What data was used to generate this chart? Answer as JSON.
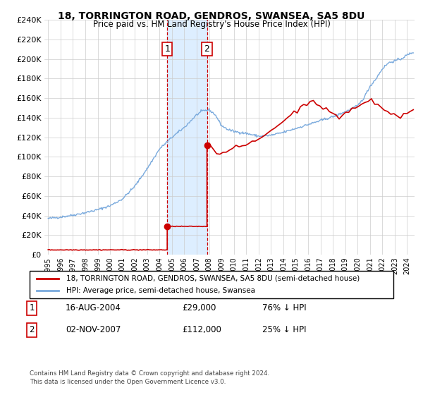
{
  "title": "18, TORRINGTON ROAD, GENDROS, SWANSEA, SA5 8DU",
  "subtitle": "Price paid vs. HM Land Registry's House Price Index (HPI)",
  "legend_line1": "18, TORRINGTON ROAD, GENDROS, SWANSEA, SA5 8DU (semi-detached house)",
  "legend_line2": "HPI: Average price, semi-detached house, Swansea",
  "footer": "Contains HM Land Registry data © Crown copyright and database right 2024.\nThis data is licensed under the Open Government Licence v3.0.",
  "sale1_date": "16-AUG-2004",
  "sale1_price": 29000,
  "sale1_label": "76% ↓ HPI",
  "sale2_date": "02-NOV-2007",
  "sale2_price": 112000,
  "sale2_label": "25% ↓ HPI",
  "sale1_x": 2004.62,
  "sale2_x": 2007.83,
  "hpi_color": "#7aaadd",
  "price_color": "#cc0000",
  "shade_color": "#ddeeff",
  "vline_color": "#cc0000",
  "ylim_max": 240000,
  "xlim_start": 1994.7,
  "xlim_end": 2024.6,
  "hpi_keypoints_x": [
    1995,
    1996,
    1997,
    1998,
    1999,
    2000,
    2001,
    2002,
    2003,
    2004,
    2005,
    2006,
    2007,
    2007.5,
    2008,
    2008.5,
    2009,
    2009.5,
    2010,
    2011,
    2012,
    2013,
    2014,
    2015,
    2016,
    2017,
    2018,
    2019,
    2020,
    2020.5,
    2021,
    2021.5,
    2022,
    2022.5,
    2023,
    2023.5,
    2024,
    2024.5
  ],
  "hpi_keypoints_y": [
    37000,
    38500,
    40500,
    43000,
    46000,
    50000,
    57000,
    70000,
    88000,
    108000,
    120000,
    130000,
    143000,
    147000,
    148000,
    143000,
    132000,
    128000,
    126000,
    124000,
    121000,
    122000,
    125000,
    129000,
    133000,
    137000,
    141000,
    146000,
    152000,
    160000,
    172000,
    180000,
    190000,
    196000,
    198000,
    200000,
    204000,
    207000
  ],
  "price_after_sale2": [
    112000,
    110000,
    108000,
    105000,
    103000,
    105000,
    108000,
    107000,
    109000,
    111000,
    108000,
    110000,
    112000,
    115000,
    113000,
    116000,
    118000,
    120000,
    122000,
    125000,
    128000,
    130000,
    132000,
    135000,
    138000,
    140000,
    143000,
    145000,
    148000,
    150000,
    152000,
    155000,
    157000,
    158000,
    155000,
    153000,
    150000,
    148000,
    145000,
    143000,
    142000,
    140000,
    143000,
    145000,
    147000,
    149000,
    150000,
    152000,
    153000,
    155000,
    157000,
    158000,
    155000,
    153000,
    150000,
    148000,
    146000,
    145000,
    143000,
    142000,
    140000,
    143000,
    145000,
    148000,
    150000
  ]
}
